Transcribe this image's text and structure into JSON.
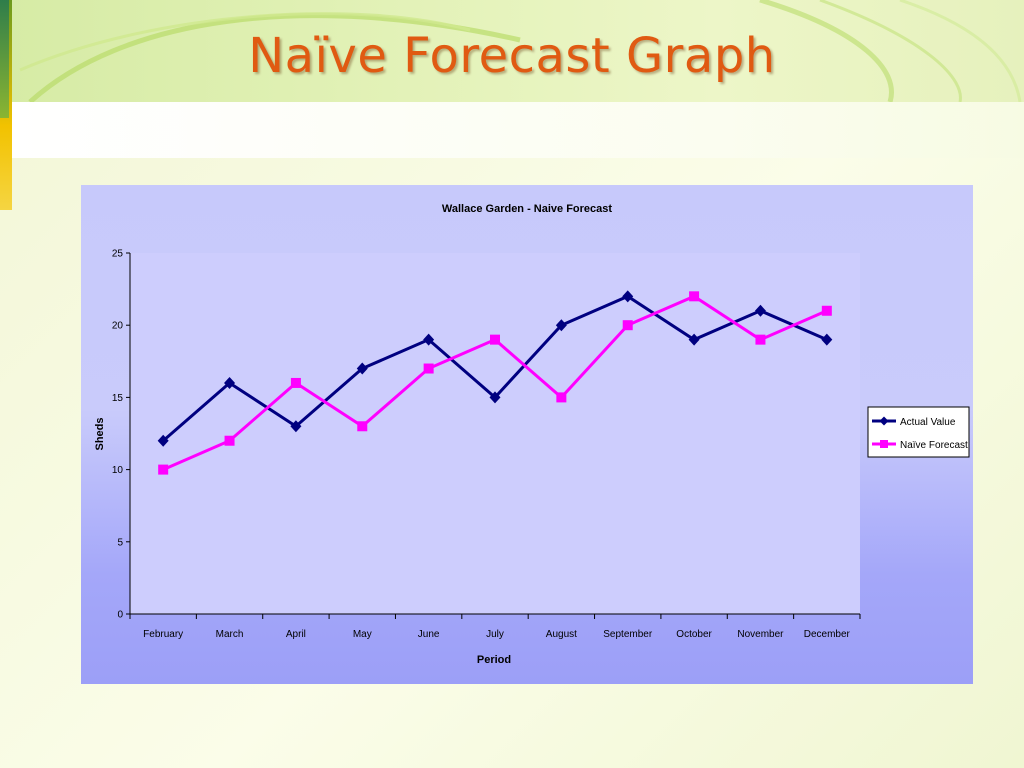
{
  "slide": {
    "title": "Naïve Forecast Graph"
  },
  "colors": {
    "title": "#e05a12",
    "actual_series": "#000080",
    "forecast_series": "#ff00ff",
    "plot_area": "#ccccff"
  },
  "chart_data": {
    "type": "line",
    "title": "Wallace Garden - Naive Forecast",
    "xlabel": "Period",
    "ylabel": "Sheds",
    "ylim": [
      0,
      25
    ],
    "yticks": [
      0,
      5,
      10,
      15,
      20,
      25
    ],
    "categories": [
      "February",
      "March",
      "April",
      "May",
      "June",
      "July",
      "August",
      "September",
      "October",
      "November",
      "December"
    ],
    "series": [
      {
        "name": "Actual Value",
        "marker": "diamond",
        "values": [
          12,
          16,
          13,
          17,
          19,
          15,
          20,
          22,
          19,
          21,
          19
        ]
      },
      {
        "name": "Naïve Forecast",
        "marker": "square",
        "values": [
          10,
          12,
          16,
          13,
          17,
          19,
          15,
          20,
          22,
          19,
          21
        ]
      }
    ],
    "grid": false,
    "legend": "right"
  }
}
